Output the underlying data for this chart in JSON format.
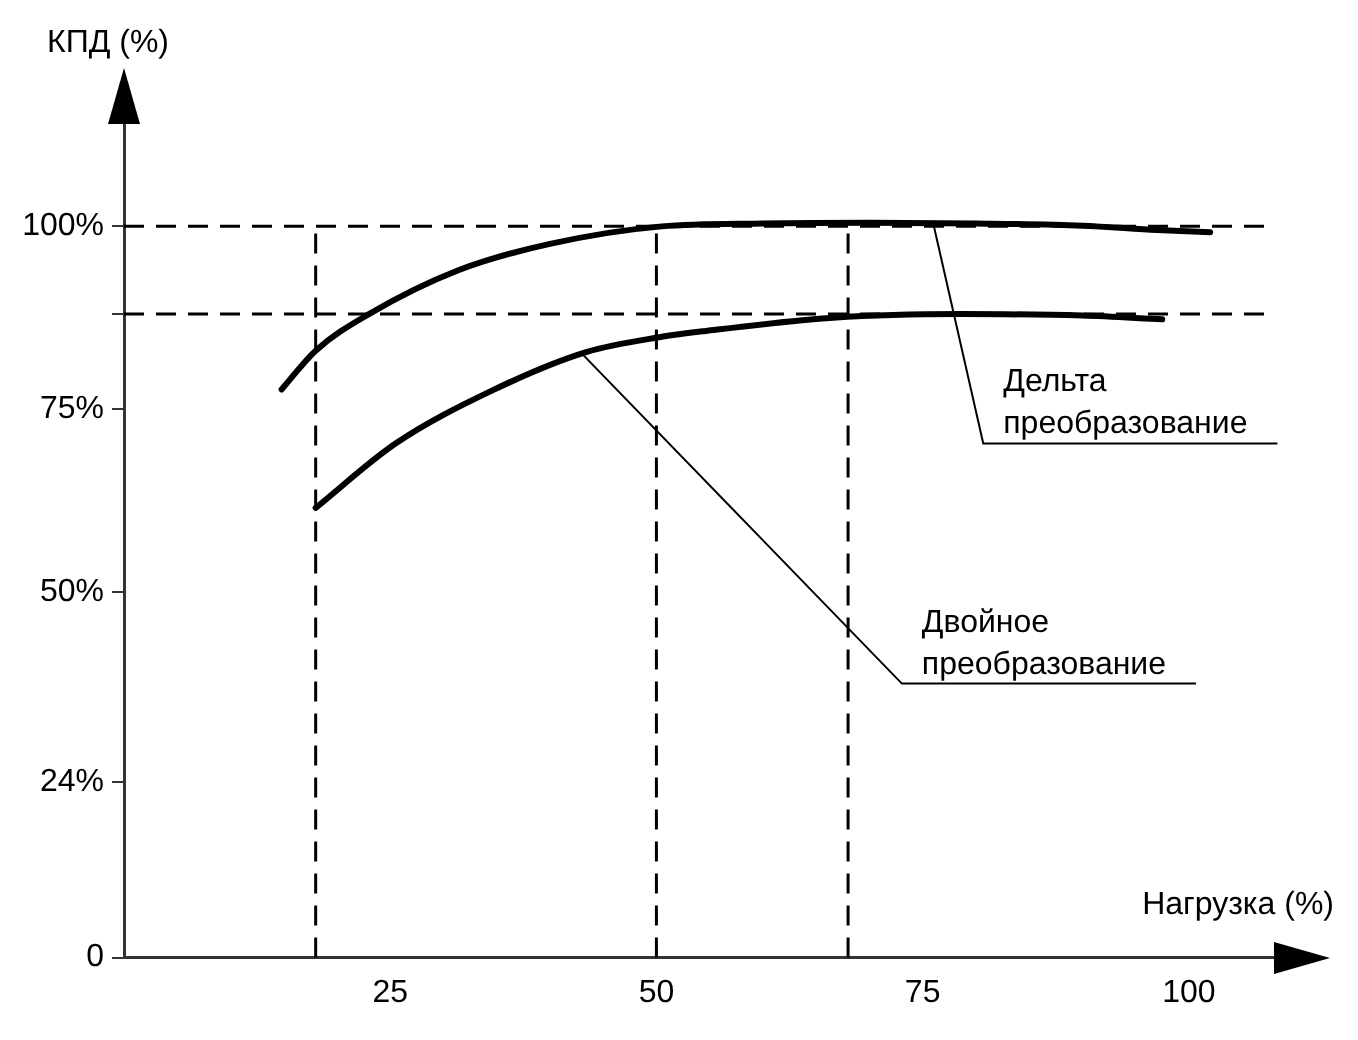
{
  "chart_data": {
    "type": "line",
    "xlabel": "Нагрузка (%)",
    "ylabel": "КПД (%)",
    "xlim": [
      0,
      108
    ],
    "ylim": [
      0,
      114
    ],
    "xticks": [
      25,
      50,
      75,
      100
    ],
    "yticks": [
      0,
      {
        "value": 24,
        "label": "24%"
      },
      {
        "value": 50,
        "label": "50%"
      },
      {
        "value": 75,
        "label": "75%"
      },
      {
        "value": 88,
        "label": null
      },
      {
        "value": 100,
        "label": "100%"
      }
    ],
    "grid": false,
    "legend": false,
    "marker": "none",
    "line_style": "solid",
    "series": [
      {
        "color": "#000000",
        "x": [
          14.8,
          18,
          23,
          31.4,
          40,
          50.5,
          60,
          70,
          80,
          90,
          97,
          102
        ],
        "values": [
          77.7,
          83,
          88,
          94,
          97.6,
          100,
          100.4,
          100.5,
          100.4,
          100.1,
          99.5,
          99.2
        ]
      },
      {
        "color": "#000000",
        "x": [
          18,
          25.5,
          34.5,
          43.4,
          50.5,
          54.6,
          66.6,
          78.6,
          90,
          97.5
        ],
        "values": [
          61.5,
          70.3,
          77.5,
          82.8,
          84.9,
          85.7,
          87.5,
          88,
          87.8,
          87.3
        ]
      }
    ],
    "ref_lines": [
      {
        "axis": "y",
        "value": 100,
        "color": "#000000",
        "line_style": "dashed"
      },
      {
        "axis": "y",
        "value": 88,
        "color": "#000000",
        "line_style": "dashed"
      },
      {
        "axis": "x",
        "value": 18,
        "color": "#000000",
        "line_style": "dashed"
      },
      {
        "axis": "x",
        "value": 50,
        "color": "#000000",
        "line_style": "dashed"
      },
      {
        "axis": "x",
        "value": 68,
        "color": "#000000",
        "line_style": "dashed"
      }
    ],
    "annotations": [
      {
        "text": "Дельта преобразование",
        "x": 76,
        "y": 100.4
      },
      {
        "text": "Двойное преобразование",
        "x": 43,
        "y": 82.6
      }
    ]
  }
}
